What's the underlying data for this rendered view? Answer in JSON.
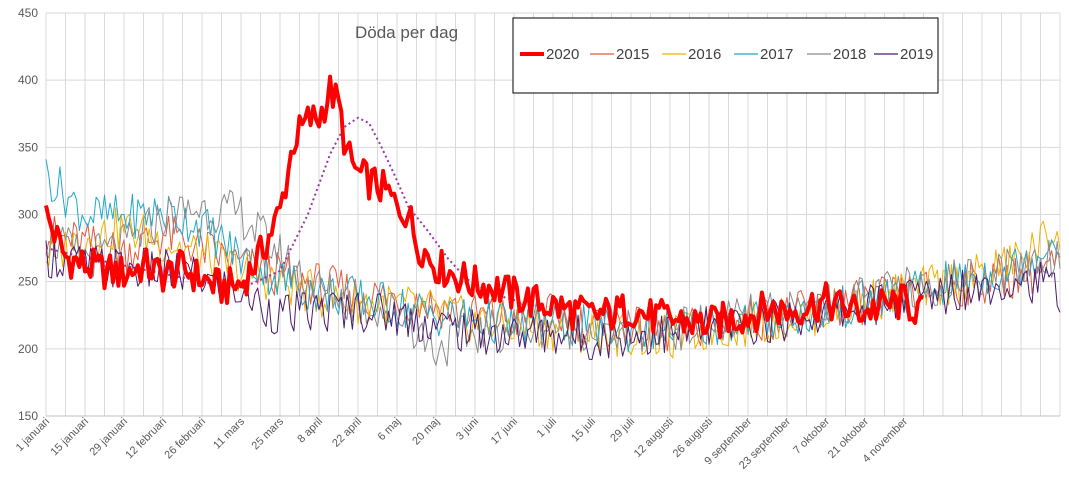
{
  "chart_data": {
    "type": "line",
    "title": "Döda per dag",
    "xlabel": "",
    "ylabel": "",
    "ylim": [
      150,
      450
    ],
    "yticks": [
      150,
      200,
      250,
      300,
      350,
      400,
      450
    ],
    "grid": true,
    "legend_position": "top-right",
    "x_tick_labels": [
      "1 januari",
      "15 januari",
      "29 januari",
      "12 februari",
      "26 februari",
      "11 mars",
      "25 mars",
      "8 april",
      "22 april",
      "6 maj",
      "20 maj",
      "3 juni",
      "17 juni",
      "1 juli",
      "15 juli",
      "29 juli",
      "12 augusti",
      "26 augusti",
      "9 september",
      "23 september",
      "7 oktober",
      "21 oktober",
      "4 november"
    ],
    "series": [
      {
        "name": "2020",
        "color": "#ff0000",
        "width": 4,
        "x": [
          1,
          8,
          15,
          22,
          29,
          36,
          43,
          50,
          57,
          64,
          71,
          78,
          85,
          90,
          95,
          99,
          103,
          106,
          109,
          113,
          117,
          120,
          124,
          127,
          131,
          134,
          141,
          148,
          155,
          162,
          169,
          176,
          183,
          190,
          197,
          204,
          211,
          218,
          225,
          232,
          239,
          246,
          253,
          260,
          267,
          274,
          281,
          288,
          295,
          302,
          309,
          316
        ],
        "values": [
          300,
          268,
          262,
          258,
          256,
          262,
          255,
          260,
          252,
          245,
          248,
          270,
          302,
          355,
          370,
          372,
          392,
          382,
          345,
          330,
          325,
          322,
          315,
          305,
          302,
          280,
          262,
          255,
          248,
          246,
          240,
          235,
          232,
          228,
          225,
          226,
          230,
          224,
          222,
          220,
          218,
          222,
          225,
          230,
          228,
          232,
          235,
          230,
          228,
          232,
          235,
          226
        ]
      },
      {
        "name": "2015",
        "color": "#e15a3c",
        "width": 1,
        "x": [
          1,
          15,
          29,
          43,
          57,
          71,
          85,
          99,
          113,
          127,
          141,
          155,
          169,
          183,
          197,
          211,
          225,
          239,
          253,
          267,
          281,
          295,
          309,
          323,
          337,
          351,
          365
        ],
        "values": [
          285,
          278,
          272,
          285,
          275,
          262,
          255,
          248,
          240,
          238,
          232,
          225,
          222,
          225,
          218,
          215,
          212,
          218,
          222,
          225,
          230,
          235,
          240,
          245,
          250,
          255,
          262
        ]
      },
      {
        "name": "2016",
        "color": "#f0b000",
        "width": 1,
        "x": [
          1,
          15,
          29,
          43,
          57,
          71,
          85,
          99,
          113,
          127,
          141,
          155,
          169,
          183,
          197,
          211,
          225,
          239,
          253,
          267,
          281,
          295,
          309,
          323,
          337,
          351,
          365
        ],
        "values": [
          268,
          282,
          290,
          280,
          270,
          258,
          250,
          240,
          235,
          232,
          228,
          220,
          218,
          215,
          212,
          210,
          208,
          214,
          218,
          222,
          228,
          235,
          242,
          248,
          255,
          268,
          290
        ]
      },
      {
        "name": "2017",
        "color": "#1fa8c9",
        "width": 1,
        "x": [
          1,
          15,
          29,
          43,
          57,
          71,
          85,
          99,
          113,
          127,
          141,
          155,
          169,
          183,
          197,
          211,
          225,
          239,
          253,
          267,
          281,
          295,
          309,
          323,
          337,
          351,
          365
        ],
        "values": [
          330,
          300,
          298,
          302,
          292,
          268,
          252,
          242,
          238,
          232,
          225,
          222,
          218,
          220,
          216,
          214,
          215,
          218,
          222,
          224,
          228,
          235,
          240,
          248,
          255,
          262,
          285
        ]
      },
      {
        "name": "2018",
        "color": "#8a8a8a",
        "width": 1,
        "x": [
          1,
          15,
          29,
          43,
          57,
          71,
          85,
          99,
          113,
          127,
          141,
          155,
          169,
          183,
          197,
          211,
          225,
          239,
          253,
          267,
          281,
          295,
          309,
          323,
          337,
          351,
          365
        ],
        "values": [
          282,
          268,
          276,
          298,
          305,
          300,
          270,
          245,
          232,
          228,
          200,
          212,
          215,
          218,
          215,
          212,
          214,
          218,
          224,
          226,
          232,
          238,
          244,
          250,
          256,
          262,
          272
        ]
      },
      {
        "name": "2019",
        "color": "#4b1a6b",
        "width": 1,
        "x": [
          1,
          15,
          29,
          43,
          57,
          71,
          85,
          99,
          113,
          127,
          141,
          155,
          169,
          183,
          197,
          211,
          225,
          239,
          253,
          267,
          281,
          295,
          309,
          323,
          337,
          351,
          365
        ],
        "values": [
          270,
          262,
          260,
          258,
          252,
          242,
          225,
          228,
          230,
          225,
          218,
          212,
          210,
          212,
          208,
          210,
          212,
          215,
          218,
          222,
          226,
          232,
          238,
          242,
          248,
          252,
          244
        ]
      },
      {
        "name": "",
        "color": "#9933aa",
        "width": 2,
        "dashed": true,
        "x": [
          1,
          15,
          29,
          43,
          57,
          71,
          85,
          95,
          103,
          108,
          113,
          117,
          121,
          126,
          131,
          138,
          145,
          152,
          159,
          166,
          173,
          180
        ],
        "values": [
          275,
          268,
          262,
          256,
          250,
          245,
          258,
          300,
          345,
          365,
          372,
          368,
          352,
          330,
          306,
          288,
          268,
          252,
          244,
          238,
          234,
          230
        ]
      }
    ]
  }
}
